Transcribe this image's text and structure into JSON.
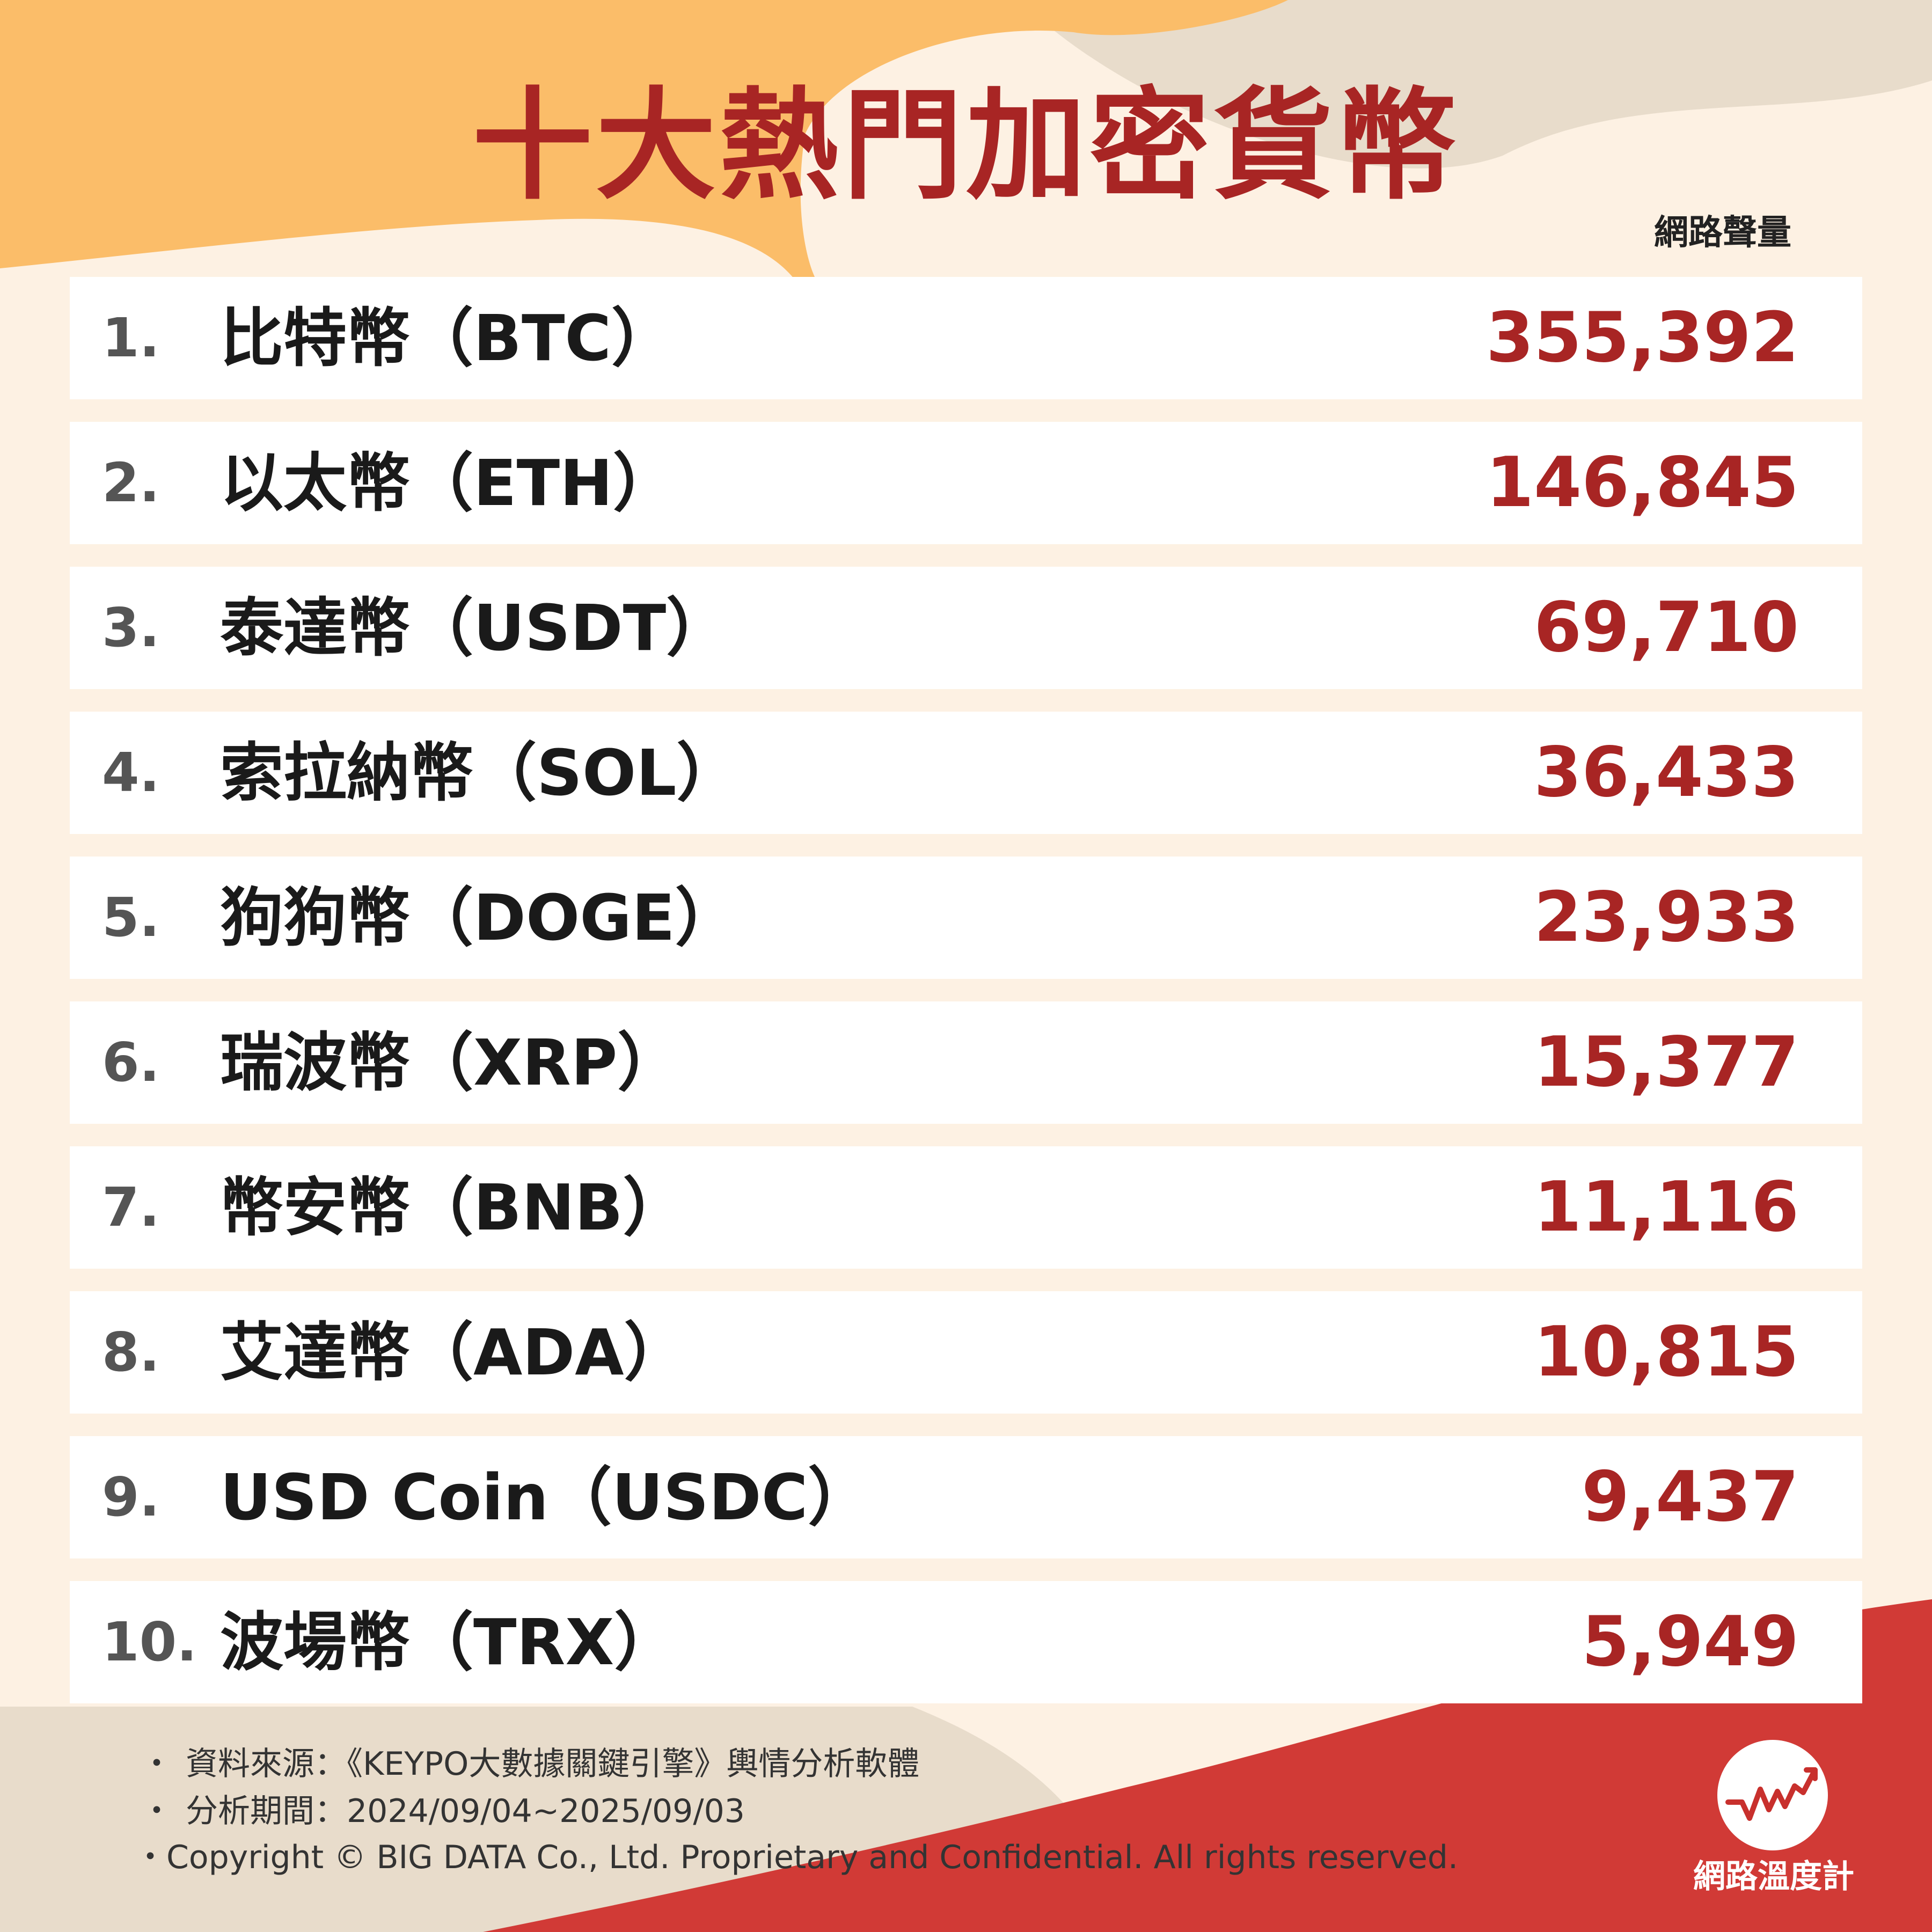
{
  "title": "十大熱門加密貨幣",
  "unit_label": "網路聲量",
  "colors": {
    "accent": "#a82524",
    "background": "#fdf1e3",
    "orange_shape": "#fbbd69",
    "beige_shape": "#e8dccb",
    "red_shape": "#d13a36"
  },
  "chart_data": {
    "type": "table",
    "title": "十大熱門加密貨幣",
    "value_label": "網路聲量",
    "rows": [
      {
        "rank": "1.",
        "name": "比特幣（BTC）",
        "value": "355,392"
      },
      {
        "rank": "2.",
        "name": "以太幣（ETH）",
        "value": "146,845"
      },
      {
        "rank": "3.",
        "name": "泰達幣（USDT）",
        "value": "69,710"
      },
      {
        "rank": "4.",
        "name": "索拉納幣（SOL）",
        "value": "36,433"
      },
      {
        "rank": "5.",
        "name": "狗狗幣（DOGE）",
        "value": "23,933"
      },
      {
        "rank": "6.",
        "name": "瑞波幣（XRP）",
        "value": "15,377"
      },
      {
        "rank": "7.",
        "name": "幣安幣（BNB）",
        "value": "11,116"
      },
      {
        "rank": "8.",
        "name": "艾達幣（ADA）",
        "value": "10,815"
      },
      {
        "rank": "9.",
        "name": "USD Coin（USDC）",
        "value": "9,437"
      },
      {
        "rank": "10.",
        "name": "波場幣（TRX）",
        "value": "5,949"
      }
    ]
  },
  "footer": {
    "bullet": "・",
    "source": "資料來源：《KEYPO大數據關鍵引擎》輿情分析軟體",
    "period": "分析期間：2024/09/04~2025/09/03",
    "copyright": "・Copyright © BIG DATA Co., Ltd. Proprietary and Confidential. All rights reserved."
  },
  "logo": {
    "text": "網路溫度計",
    "icon": "trend-line-icon"
  }
}
